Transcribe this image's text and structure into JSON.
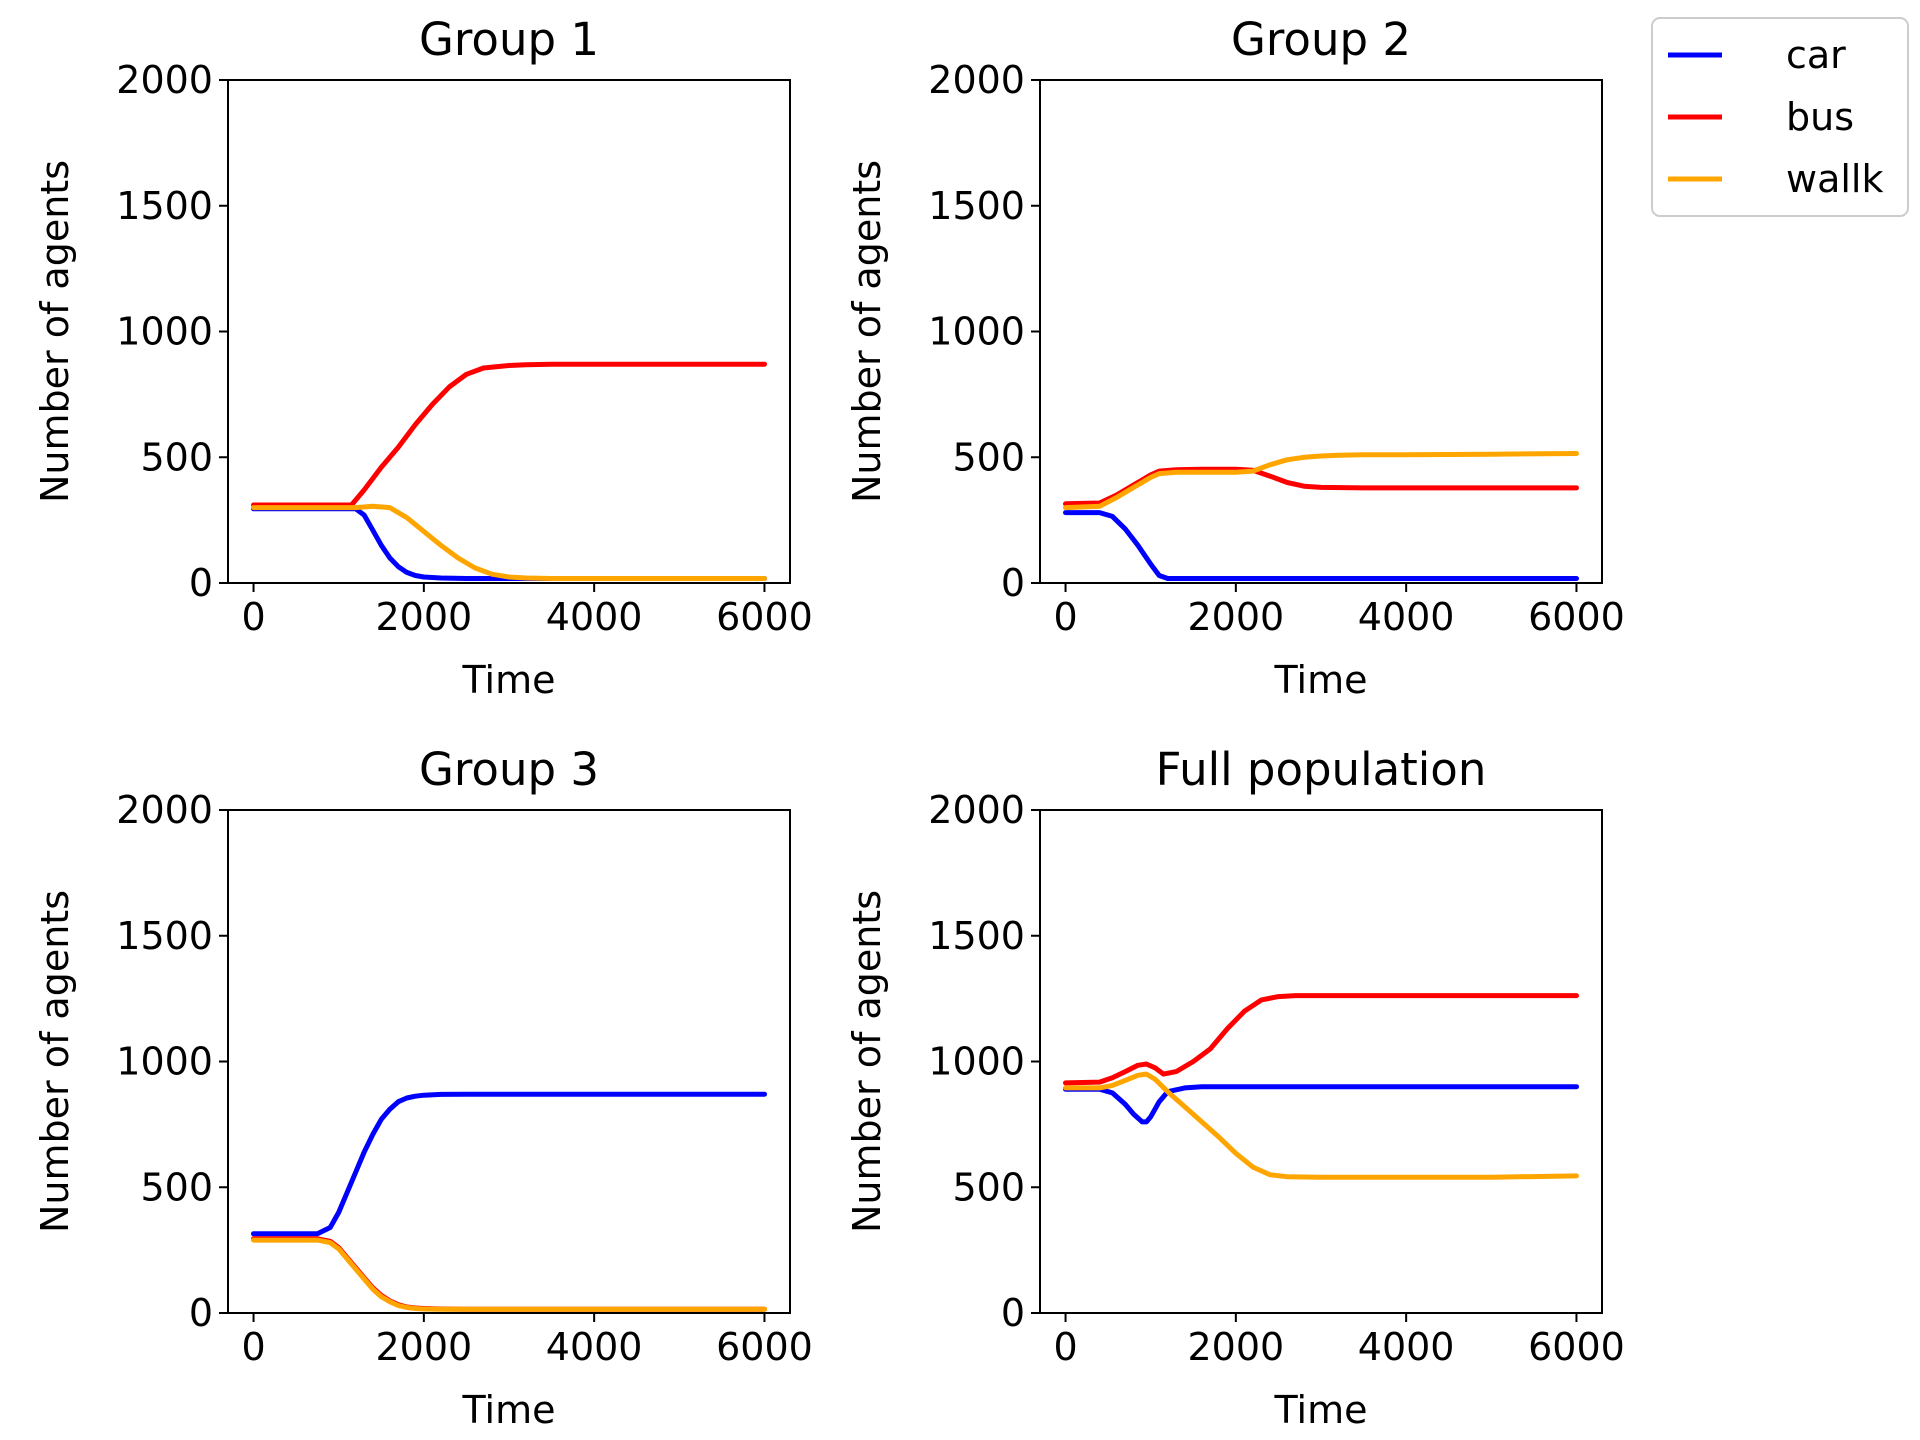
{
  "legend": {
    "position": "top-right",
    "entries": [
      {
        "label": "car",
        "color": "#0000ff"
      },
      {
        "label": "bus",
        "color": "#ff0000"
      },
      {
        "label": "wallk",
        "color": "#ffa500"
      }
    ]
  },
  "chart_data": [
    {
      "type": "line",
      "title": "Group 1",
      "xlabel": "Time",
      "ylabel": "Number of agents",
      "xlim": [
        -300,
        6300
      ],
      "ylim": [
        0,
        2000
      ],
      "xticks": [
        0,
        2000,
        4000,
        6000
      ],
      "yticks": [
        0,
        500,
        1000,
        1500,
        2000
      ],
      "series": [
        {
          "name": "car",
          "color": "#0000ff",
          "x": [
            0,
            1200,
            1300,
            1400,
            1500,
            1600,
            1700,
            1800,
            1900,
            2000,
            2200,
            2500,
            3000,
            4000,
            5000,
            6000
          ],
          "values": [
            295,
            295,
            270,
            210,
            150,
            100,
            65,
            42,
            30,
            24,
            20,
            18,
            18,
            18,
            18,
            18
          ]
        },
        {
          "name": "bus",
          "color": "#ff0000",
          "x": [
            0,
            1150,
            1300,
            1500,
            1700,
            1900,
            2100,
            2300,
            2500,
            2700,
            3000,
            3200,
            3500,
            4000,
            5000,
            6000
          ],
          "values": [
            310,
            310,
            370,
            460,
            540,
            630,
            710,
            780,
            830,
            855,
            865,
            868,
            870,
            870,
            870,
            870
          ]
        },
        {
          "name": "wallk",
          "color": "#ffa500",
          "x": [
            0,
            1200,
            1400,
            1600,
            1800,
            2000,
            2200,
            2400,
            2600,
            2800,
            3000,
            3200,
            3500,
            4000,
            5000,
            6000
          ],
          "values": [
            300,
            300,
            305,
            300,
            260,
            205,
            150,
            100,
            60,
            35,
            24,
            20,
            18,
            18,
            18,
            18
          ]
        }
      ]
    },
    {
      "type": "line",
      "title": "Group 2",
      "xlabel": "Time",
      "ylabel": "Number of agents",
      "xlim": [
        -300,
        6300
      ],
      "ylim": [
        0,
        2000
      ],
      "xticks": [
        0,
        2000,
        4000,
        6000
      ],
      "yticks": [
        0,
        500,
        1000,
        1500,
        2000
      ],
      "series": [
        {
          "name": "car",
          "color": "#0000ff",
          "x": [
            0,
            400,
            550,
            700,
            850,
            1000,
            1100,
            1200,
            1500,
            2000,
            3000,
            4000,
            5000,
            6000
          ],
          "values": [
            280,
            280,
            265,
            215,
            150,
            75,
            30,
            18,
            18,
            18,
            18,
            18,
            18,
            18
          ]
        },
        {
          "name": "bus",
          "color": "#ff0000",
          "x": [
            0,
            400,
            600,
            800,
            1000,
            1100,
            1300,
            1600,
            2000,
            2200,
            2400,
            2600,
            2800,
            3000,
            3500,
            4000,
            5000,
            6000
          ],
          "values": [
            315,
            318,
            350,
            390,
            430,
            445,
            450,
            452,
            452,
            448,
            425,
            400,
            385,
            380,
            378,
            378,
            378,
            378
          ]
        },
        {
          "name": "wallk",
          "color": "#ffa500",
          "x": [
            0,
            400,
            600,
            800,
            1000,
            1100,
            1300,
            1600,
            2000,
            2200,
            2400,
            2600,
            2800,
            3000,
            3200,
            3500,
            4000,
            5000,
            6000
          ],
          "values": [
            300,
            305,
            340,
            380,
            420,
            435,
            440,
            440,
            440,
            445,
            470,
            490,
            500,
            505,
            508,
            510,
            510,
            512,
            515
          ]
        }
      ]
    },
    {
      "type": "line",
      "title": "Group 3",
      "xlabel": "Time",
      "ylabel": "Number of agents",
      "xlim": [
        -300,
        6300
      ],
      "ylim": [
        0,
        2000
      ],
      "xticks": [
        0,
        2000,
        4000,
        6000
      ],
      "yticks": [
        0,
        500,
        1000,
        1500,
        2000
      ],
      "series": [
        {
          "name": "car",
          "color": "#0000ff",
          "x": [
            0,
            750,
            900,
            1000,
            1100,
            1200,
            1300,
            1400,
            1500,
            1600,
            1700,
            1800,
            1900,
            2000,
            2200,
            2500,
            3000,
            4000,
            5000,
            6000
          ],
          "values": [
            315,
            315,
            340,
            400,
            480,
            560,
            640,
            710,
            770,
            810,
            840,
            855,
            862,
            866,
            869,
            870,
            870,
            870,
            870,
            870
          ]
        },
        {
          "name": "bus",
          "color": "#ff0000",
          "x": [
            0,
            750,
            900,
            1000,
            1100,
            1200,
            1300,
            1400,
            1500,
            1600,
            1700,
            1800,
            1900,
            2000,
            2200,
            2500,
            3000,
            4000,
            5000,
            6000
          ],
          "values": [
            295,
            295,
            285,
            260,
            220,
            180,
            140,
            100,
            70,
            48,
            33,
            24,
            20,
            18,
            16,
            15,
            15,
            15,
            15,
            15
          ]
        },
        {
          "name": "wallk",
          "color": "#ffa500",
          "x": [
            0,
            750,
            900,
            1000,
            1100,
            1200,
            1300,
            1400,
            1500,
            1600,
            1700,
            1800,
            1900,
            2000,
            2200,
            2500,
            3000,
            4000,
            5000,
            6000
          ],
          "values": [
            290,
            290,
            280,
            255,
            215,
            175,
            135,
            95,
            65,
            45,
            30,
            22,
            18,
            16,
            15,
            15,
            15,
            15,
            15,
            15
          ]
        }
      ]
    },
    {
      "type": "line",
      "title": "Full population",
      "xlabel": "Time",
      "ylabel": "Number of agents",
      "xlim": [
        -300,
        6300
      ],
      "ylim": [
        0,
        2000
      ],
      "xticks": [
        0,
        2000,
        4000,
        6000
      ],
      "yticks": [
        0,
        500,
        1000,
        1500,
        2000
      ],
      "series": [
        {
          "name": "car",
          "color": "#0000ff",
          "x": [
            0,
            400,
            550,
            700,
            800,
            900,
            950,
            1000,
            1100,
            1200,
            1400,
            1600,
            2000,
            3000,
            4000,
            5000,
            6000
          ],
          "values": [
            890,
            890,
            875,
            830,
            790,
            760,
            760,
            780,
            840,
            880,
            895,
            900,
            900,
            900,
            900,
            900,
            900
          ]
        },
        {
          "name": "bus",
          "color": "#ff0000",
          "x": [
            0,
            400,
            550,
            700,
            850,
            950,
            1050,
            1150,
            1300,
            1500,
            1700,
            1900,
            2100,
            2300,
            2500,
            2700,
            3000,
            4000,
            5000,
            6000
          ],
          "values": [
            915,
            918,
            935,
            960,
            985,
            990,
            975,
            950,
            960,
            1000,
            1050,
            1130,
            1200,
            1245,
            1258,
            1262,
            1262,
            1262,
            1262,
            1262
          ]
        },
        {
          "name": "wallk",
          "color": "#ffa500",
          "x": [
            0,
            400,
            550,
            700,
            850,
            950,
            1050,
            1200,
            1400,
            1600,
            1800,
            2000,
            2200,
            2400,
            2600,
            3000,
            4000,
            5000,
            6000
          ],
          "values": [
            895,
            895,
            905,
            925,
            945,
            950,
            930,
            880,
            820,
            760,
            700,
            635,
            580,
            550,
            542,
            540,
            540,
            540,
            545
          ]
        }
      ]
    }
  ]
}
